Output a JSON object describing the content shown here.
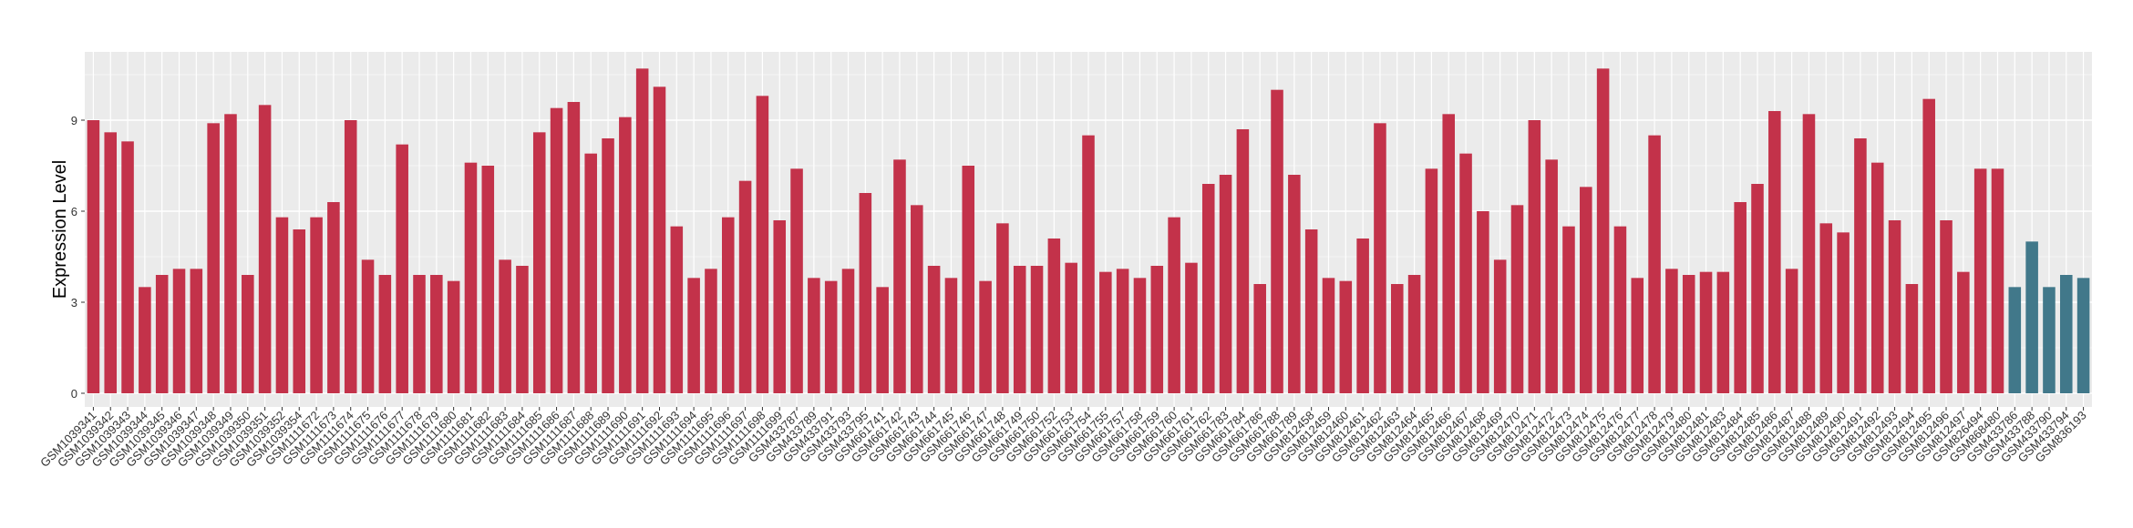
{
  "chart_data": {
    "type": "bar",
    "y_label": "Expression Level",
    "categories": [
      "GSM1039341",
      "GSM1039342",
      "GSM1039343",
      "GSM1039344",
      "GSM1039345",
      "GSM1039346",
      "GSM1039347",
      "GSM1039348",
      "GSM1039349",
      "GSM1039350",
      "GSM1039351",
      "GSM1039352",
      "GSM1039354",
      "GSM1111672",
      "GSM1111673",
      "GSM1111674",
      "GSM1111675",
      "GSM1111676",
      "GSM1111677",
      "GSM1111678",
      "GSM1111679",
      "GSM1111680",
      "GSM1111681",
      "GSM1111682",
      "GSM1111683",
      "GSM1111684",
      "GSM1111685",
      "GSM1111686",
      "GSM1111687",
      "GSM1111688",
      "GSM1111689",
      "GSM1111690",
      "GSM1111691",
      "GSM1111692",
      "GSM1111693",
      "GSM1111694",
      "GSM1111695",
      "GSM1111696",
      "GSM1111697",
      "GSM1111698",
      "GSM1111699",
      "GSM433787",
      "GSM433789",
      "GSM433791",
      "GSM433793",
      "GSM433795",
      "GSM661741",
      "GSM661742",
      "GSM661743",
      "GSM661744",
      "GSM661745",
      "GSM661746",
      "GSM661747",
      "GSM661748",
      "GSM661749",
      "GSM661750",
      "GSM661752",
      "GSM661753",
      "GSM661754",
      "GSM661755",
      "GSM661757",
      "GSM661758",
      "GSM661759",
      "GSM661760",
      "GSM661761",
      "GSM661762",
      "GSM661783",
      "GSM661784",
      "GSM661786",
      "GSM661788",
      "GSM661789",
      "GSM812458",
      "GSM812459",
      "GSM812460",
      "GSM812461",
      "GSM812462",
      "GSM812463",
      "GSM812464",
      "GSM812465",
      "GSM812466",
      "GSM812467",
      "GSM812468",
      "GSM812469",
      "GSM812470",
      "GSM812471",
      "GSM812472",
      "GSM812473",
      "GSM812474",
      "GSM812475",
      "GSM812476",
      "GSM812477",
      "GSM812478",
      "GSM812479",
      "GSM812480",
      "GSM812481",
      "GSM812483",
      "GSM812484",
      "GSM812485",
      "GSM812486",
      "GSM812487",
      "GSM812488",
      "GSM812489",
      "GSM812490",
      "GSM812491",
      "GSM812492",
      "GSM812493",
      "GSM812494",
      "GSM812495",
      "GSM812496",
      "GSM812497",
      "GSM826494",
      "GSM868480",
      "GSM433786",
      "GSM433788",
      "GSM433790",
      "GSM433794",
      "GSM836193"
    ],
    "values": [
      9.0,
      8.6,
      8.3,
      3.5,
      3.9,
      4.1,
      4.1,
      8.9,
      9.2,
      3.9,
      9.5,
      5.8,
      5.4,
      5.8,
      6.3,
      9.0,
      4.4,
      3.9,
      8.2,
      3.9,
      3.9,
      3.7,
      7.6,
      7.5,
      4.4,
      4.2,
      8.6,
      9.4,
      9.6,
      7.9,
      8.4,
      9.1,
      10.7,
      10.1,
      5.5,
      3.8,
      4.1,
      5.8,
      7.0,
      9.8,
      5.7,
      7.4,
      3.8,
      3.7,
      4.1,
      6.6,
      3.5,
      7.7,
      6.2,
      4.2,
      3.8,
      7.5,
      3.7,
      5.6,
      4.2,
      4.2,
      5.1,
      4.3,
      8.5,
      4.0,
      4.1,
      3.8,
      4.2,
      5.8,
      4.3,
      6.9,
      7.2,
      8.7,
      3.6,
      10.0,
      7.2,
      5.4,
      3.8,
      3.7,
      5.1,
      8.9,
      3.6,
      3.9,
      7.4,
      9.2,
      7.9,
      6.0,
      4.4,
      6.2,
      9.0,
      7.7,
      5.5,
      6.8,
      10.7,
      5.5,
      3.8,
      8.5,
      4.1,
      3.9,
      4.0,
      4.0,
      6.3,
      6.9,
      9.3,
      4.1,
      9.2,
      5.6,
      5.3,
      8.4,
      7.6,
      5.7,
      3.6,
      9.7,
      5.7,
      4.0,
      7.4,
      7.4,
      3.5,
      5.0,
      3.5,
      3.9,
      3.8
    ],
    "colors": [
      "#c3324a",
      "#c3324a",
      "#c3324a",
      "#c3324a",
      "#c3324a",
      "#c3324a",
      "#c3324a",
      "#c3324a",
      "#c3324a",
      "#c3324a",
      "#c3324a",
      "#c3324a",
      "#c3324a",
      "#c3324a",
      "#c3324a",
      "#c3324a",
      "#c3324a",
      "#c3324a",
      "#c3324a",
      "#c3324a",
      "#c3324a",
      "#c3324a",
      "#c3324a",
      "#c3324a",
      "#c3324a",
      "#c3324a",
      "#c3324a",
      "#c3324a",
      "#c3324a",
      "#c3324a",
      "#c3324a",
      "#c3324a",
      "#c3324a",
      "#c3324a",
      "#c3324a",
      "#c3324a",
      "#c3324a",
      "#c3324a",
      "#c3324a",
      "#c3324a",
      "#c3324a",
      "#c3324a",
      "#c3324a",
      "#c3324a",
      "#c3324a",
      "#c3324a",
      "#c3324a",
      "#c3324a",
      "#c3324a",
      "#c3324a",
      "#c3324a",
      "#c3324a",
      "#c3324a",
      "#c3324a",
      "#c3324a",
      "#c3324a",
      "#c3324a",
      "#c3324a",
      "#c3324a",
      "#c3324a",
      "#c3324a",
      "#c3324a",
      "#c3324a",
      "#c3324a",
      "#c3324a",
      "#c3324a",
      "#c3324a",
      "#c3324a",
      "#c3324a",
      "#c3324a",
      "#c3324a",
      "#c3324a",
      "#c3324a",
      "#c3324a",
      "#c3324a",
      "#c3324a",
      "#c3324a",
      "#c3324a",
      "#c3324a",
      "#c3324a",
      "#c3324a",
      "#c3324a",
      "#c3324a",
      "#c3324a",
      "#c3324a",
      "#c3324a",
      "#c3324a",
      "#c3324a",
      "#c3324a",
      "#c3324a",
      "#c3324a",
      "#c3324a",
      "#c3324a",
      "#c3324a",
      "#c3324a",
      "#c3324a",
      "#c3324a",
      "#c3324a",
      "#c3324a",
      "#c3324a",
      "#c3324a",
      "#c3324a",
      "#c3324a",
      "#c3324a",
      "#c3324a",
      "#c3324a",
      "#c3324a",
      "#c3324a",
      "#c3324a",
      "#c3324a",
      "#c3324a",
      "#c3324a",
      "#41788a",
      "#41788a",
      "#41788a",
      "#41788a",
      "#41788a"
    ],
    "ylim": [
      -0.45,
      11.25
    ],
    "yticks": [
      0,
      3,
      6,
      9
    ],
    "grid": true
  }
}
